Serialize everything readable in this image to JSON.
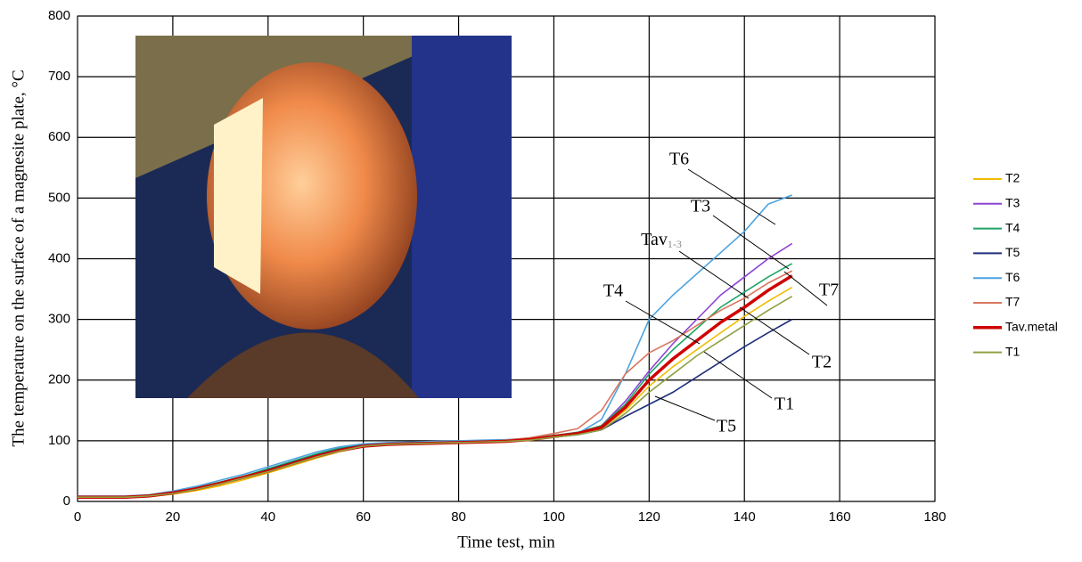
{
  "chart_data": {
    "type": "line",
    "xlabel": "Time test, min",
    "ylabel": "The temperature on the surface of a magnesite plate, °C",
    "x": [
      0,
      5,
      10,
      15,
      20,
      25,
      30,
      35,
      40,
      45,
      50,
      55,
      60,
      65,
      70,
      75,
      80,
      85,
      90,
      95,
      100,
      105,
      110,
      115,
      120,
      125,
      130,
      135,
      140,
      145,
      150
    ],
    "series": [
      {
        "name": "T2",
        "color": "#f2bd00",
        "values": [
          6,
          6,
          6,
          8,
          12,
          18,
          26,
          36,
          47,
          59,
          71,
          82,
          90,
          94,
          95,
          96,
          97,
          98,
          99,
          101,
          106,
          111,
          120,
          150,
          190,
          222,
          250,
          278,
          305,
          330,
          353
        ]
      },
      {
        "name": "T3",
        "color": "#8e44d4",
        "values": [
          8,
          8,
          8,
          10,
          15,
          22,
          31,
          41,
          52,
          64,
          76,
          86,
          93,
          95,
          96,
          97,
          98,
          99,
          100,
          103,
          108,
          113,
          125,
          165,
          215,
          260,
          300,
          340,
          370,
          400,
          425
        ]
      },
      {
        "name": "T4",
        "color": "#1fa567",
        "values": [
          8,
          8,
          8,
          10,
          15,
          23,
          32,
          42,
          54,
          66,
          78,
          88,
          94,
          96,
          97,
          98,
          99,
          100,
          101,
          104,
          109,
          114,
          125,
          160,
          210,
          250,
          285,
          320,
          345,
          370,
          392
        ]
      },
      {
        "name": "T5",
        "color": "#1f2f7a",
        "values": [
          8,
          8,
          8,
          10,
          15,
          22,
          31,
          41,
          52,
          64,
          76,
          86,
          93,
          95,
          96,
          97,
          98,
          99,
          100,
          102,
          106,
          110,
          118,
          140,
          160,
          180,
          205,
          230,
          255,
          278,
          300
        ]
      },
      {
        "name": "T6",
        "color": "#4da3e0",
        "values": [
          9,
          9,
          9,
          11,
          17,
          25,
          35,
          45,
          57,
          69,
          81,
          90,
          95,
          97,
          98,
          99,
          100,
          101,
          102,
          104,
          108,
          112,
          135,
          210,
          300,
          340,
          375,
          410,
          445,
          490,
          505
        ]
      },
      {
        "name": "T7",
        "color": "#d9775f",
        "values": [
          8,
          8,
          8,
          10,
          14,
          21,
          30,
          40,
          51,
          63,
          75,
          85,
          92,
          95,
          96,
          97,
          98,
          99,
          101,
          105,
          112,
          120,
          150,
          210,
          245,
          265,
          290,
          315,
          335,
          360,
          380
        ]
      },
      {
        "name": "Tav.metal",
        "color": "#d00000",
        "values": [
          7,
          7,
          7,
          9,
          14,
          21,
          30,
          40,
          50,
          62,
          74,
          84,
          91,
          94,
          95,
          96,
          97,
          98,
          99,
          102,
          107,
          112,
          122,
          155,
          200,
          235,
          265,
          295,
          320,
          348,
          372
        ]
      },
      {
        "name": "T1",
        "color": "#8fa040",
        "values": [
          7,
          7,
          7,
          9,
          13,
          20,
          29,
          39,
          49,
          61,
          73,
          83,
          91,
          94,
          95,
          96,
          97,
          98,
          99,
          101,
          106,
          110,
          118,
          145,
          180,
          210,
          240,
          265,
          290,
          315,
          338
        ]
      }
    ],
    "xlim": [
      0,
      180
    ],
    "xticks": [
      0,
      20,
      40,
      60,
      80,
      100,
      120,
      140,
      160,
      180
    ],
    "ylim": [
      0,
      800
    ],
    "yticks": [
      0,
      100,
      200,
      300,
      400,
      500,
      600,
      700,
      800
    ],
    "grid": true,
    "legend": "right",
    "annotations": [
      "T6",
      "T3",
      {
        "text": "Tav",
        "sub": "1-3"
      },
      "T4",
      "T7",
      "T2",
      "T1",
      "T5"
    ]
  }
}
